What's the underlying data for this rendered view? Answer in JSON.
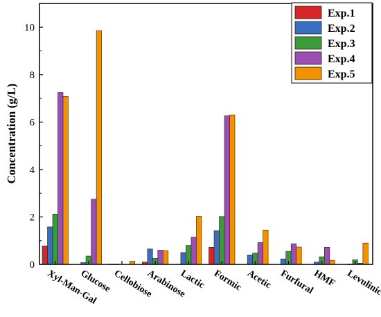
{
  "chart_data": {
    "type": "bar",
    "ylabel": "Concentration (g/L)",
    "xlabel": "",
    "ylim": [
      0,
      11
    ],
    "yticks": [
      0,
      2,
      4,
      6,
      8,
      10
    ],
    "grid": false,
    "legend_position": "top-right",
    "categories": [
      "Xyl-Man-Gal",
      "Glucose",
      "Cellobiose",
      "Arabinose",
      "Lactic",
      "Formic",
      "Acetic",
      "Furfural",
      "HMF",
      "Levulinic"
    ],
    "series": [
      {
        "name": "Exp.1",
        "color": "#d62728",
        "values": [
          0.78,
          0.0,
          0.02,
          0.1,
          0.0,
          0.72,
          0.0,
          0.0,
          0.0,
          0.0
        ]
      },
      {
        "name": "Exp.2",
        "color": "#3a6fbf",
        "values": [
          1.58,
          0.08,
          0.02,
          0.65,
          0.5,
          1.42,
          0.4,
          0.23,
          0.1,
          0.02
        ]
      },
      {
        "name": "Exp.3",
        "color": "#3c9a3c",
        "values": [
          2.12,
          0.35,
          0.0,
          0.25,
          0.8,
          2.02,
          0.48,
          0.55,
          0.32,
          0.2
        ]
      },
      {
        "name": "Exp.4",
        "color": "#9b4fb0",
        "values": [
          7.25,
          2.75,
          0.0,
          0.6,
          1.15,
          6.27,
          0.92,
          0.87,
          0.72,
          0.05
        ]
      },
      {
        "name": "Exp.5",
        "color": "#f39200",
        "values": [
          7.08,
          9.85,
          0.13,
          0.58,
          2.03,
          6.3,
          1.45,
          0.73,
          0.17,
          0.9
        ]
      }
    ]
  }
}
